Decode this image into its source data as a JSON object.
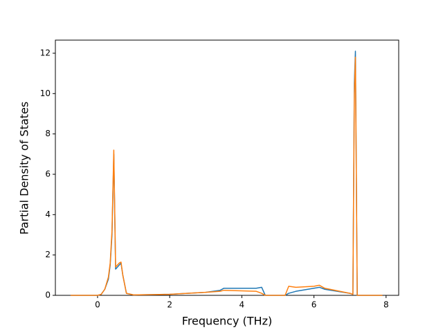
{
  "chart_data": {
    "type": "line",
    "xlabel": "Frequency (THz)",
    "ylabel": "Partial Density of States",
    "x": [
      -0.75,
      0,
      0.1,
      0.2,
      0.3,
      0.35,
      0.4,
      0.45,
      0.5,
      0.6,
      0.65,
      0.7,
      0.8,
      1.0,
      2.0,
      3.0,
      3.4,
      3.5,
      4.4,
      4.55,
      4.6,
      4.65,
      5.2,
      5.3,
      5.5,
      6.0,
      6.15,
      6.3,
      7.0,
      7.08,
      7.12,
      7.15,
      7.2,
      7.25,
      7.9
    ],
    "series": [
      {
        "color": "#1f77b4",
        "values": [
          0,
          0,
          0.05,
          0.3,
          0.8,
          1.5,
          3,
          7.0,
          1.3,
          1.5,
          1.6,
          1.0,
          0.1,
          0.02,
          0.05,
          0.15,
          0.25,
          0.35,
          0.35,
          0.4,
          0.2,
          0,
          0,
          0.1,
          0.2,
          0.35,
          0.4,
          0.3,
          0.1,
          0.05,
          10.5,
          12.1,
          0,
          0,
          0
        ]
      },
      {
        "color": "#ff7f0e",
        "values": [
          0,
          0,
          0.05,
          0.3,
          0.9,
          1.6,
          3.2,
          7.2,
          1.4,
          1.6,
          1.65,
          1.0,
          0.1,
          0.02,
          0.05,
          0.15,
          0.2,
          0.25,
          0.2,
          0.1,
          0.05,
          0,
          0,
          0.45,
          0.4,
          0.45,
          0.5,
          0.35,
          0.1,
          0.05,
          10,
          11.8,
          0,
          0,
          0
        ]
      }
    ],
    "xlim": [
      -1.17,
      8.35
    ],
    "xticks": [
      0,
      2,
      4,
      6,
      8
    ],
    "ylim": [
      0,
      12.65
    ],
    "yticks": [
      0,
      2,
      4,
      6,
      8,
      10,
      12
    ]
  }
}
